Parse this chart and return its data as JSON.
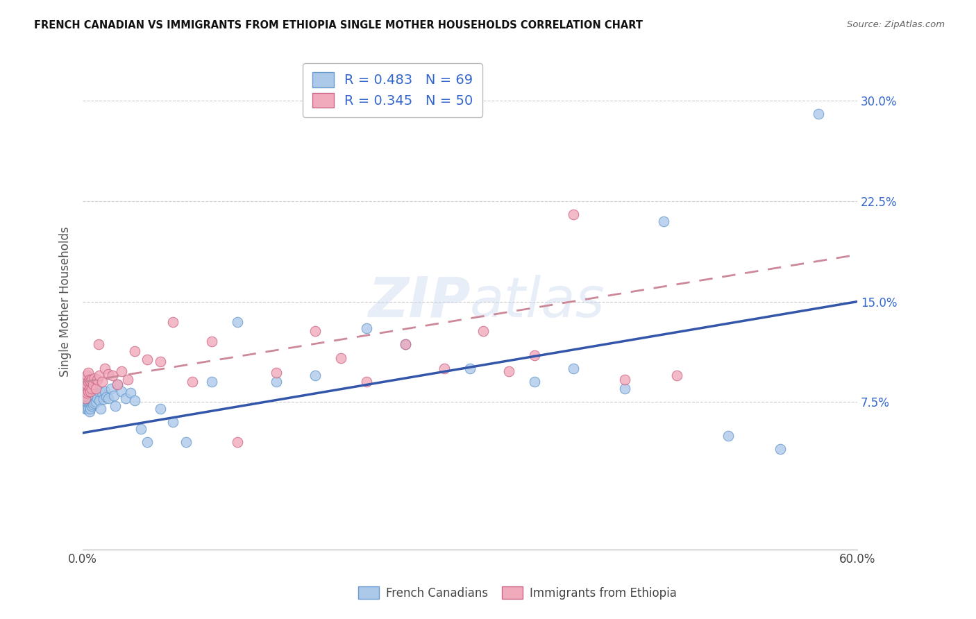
{
  "title": "FRENCH CANADIAN VS IMMIGRANTS FROM ETHIOPIA SINGLE MOTHER HOUSEHOLDS CORRELATION CHART",
  "source": "Source: ZipAtlas.com",
  "ylabel": "Single Mother Households",
  "xlim": [
    0.0,
    0.6
  ],
  "ylim": [
    -0.035,
    0.335
  ],
  "ytick_values": [
    0.075,
    0.15,
    0.225,
    0.3
  ],
  "ytick_labels": [
    "7.5%",
    "15.0%",
    "22.5%",
    "30.0%"
  ],
  "legend_fc_r": "0.483",
  "legend_fc_n": "69",
  "legend_eth_r": "0.345",
  "legend_eth_n": "50",
  "fc_color": "#adc9ea",
  "fc_edge": "#6699cc",
  "eth_color": "#f0aabb",
  "eth_edge": "#cc6688",
  "line_fc_color": "#3355aa",
  "line_eth_color": "#cc4466",
  "line_eth_dash_color": "#cc8899",
  "watermark_color": "#ccdaee",
  "fc_x": [
    0.001,
    0.001,
    0.001,
    0.001,
    0.002,
    0.002,
    0.002,
    0.002,
    0.002,
    0.003,
    0.003,
    0.003,
    0.003,
    0.004,
    0.004,
    0.004,
    0.004,
    0.005,
    0.005,
    0.005,
    0.005,
    0.006,
    0.006,
    0.006,
    0.007,
    0.007,
    0.007,
    0.008,
    0.008,
    0.009,
    0.009,
    0.01,
    0.01,
    0.011,
    0.012,
    0.013,
    0.014,
    0.015,
    0.016,
    0.017,
    0.018,
    0.02,
    0.022,
    0.024,
    0.025,
    0.027,
    0.03,
    0.033,
    0.037,
    0.04,
    0.045,
    0.05,
    0.06,
    0.07,
    0.08,
    0.1,
    0.12,
    0.15,
    0.18,
    0.22,
    0.25,
    0.3,
    0.35,
    0.38,
    0.42,
    0.45,
    0.5,
    0.54,
    0.57
  ],
  "fc_y": [
    0.075,
    0.08,
    0.085,
    0.09,
    0.07,
    0.075,
    0.08,
    0.085,
    0.09,
    0.07,
    0.075,
    0.08,
    0.085,
    0.07,
    0.075,
    0.082,
    0.088,
    0.068,
    0.075,
    0.08,
    0.086,
    0.07,
    0.076,
    0.082,
    0.072,
    0.078,
    0.083,
    0.073,
    0.079,
    0.074,
    0.08,
    0.075,
    0.082,
    0.078,
    0.083,
    0.076,
    0.07,
    0.082,
    0.077,
    0.083,
    0.079,
    0.078,
    0.085,
    0.08,
    0.072,
    0.088,
    0.083,
    0.078,
    0.082,
    0.076,
    0.055,
    0.045,
    0.07,
    0.06,
    0.045,
    0.09,
    0.135,
    0.09,
    0.095,
    0.13,
    0.118,
    0.1,
    0.09,
    0.1,
    0.085,
    0.21,
    0.05,
    0.04,
    0.29
  ],
  "eth_x": [
    0.001,
    0.001,
    0.001,
    0.002,
    0.002,
    0.002,
    0.003,
    0.003,
    0.003,
    0.004,
    0.004,
    0.004,
    0.005,
    0.005,
    0.006,
    0.006,
    0.007,
    0.007,
    0.008,
    0.009,
    0.01,
    0.011,
    0.012,
    0.013,
    0.015,
    0.017,
    0.02,
    0.023,
    0.027,
    0.03,
    0.035,
    0.04,
    0.05,
    0.06,
    0.07,
    0.085,
    0.1,
    0.12,
    0.15,
    0.18,
    0.2,
    0.22,
    0.25,
    0.28,
    0.31,
    0.33,
    0.35,
    0.38,
    0.42,
    0.46
  ],
  "eth_y": [
    0.08,
    0.086,
    0.092,
    0.078,
    0.085,
    0.092,
    0.082,
    0.088,
    0.095,
    0.083,
    0.09,
    0.097,
    0.085,
    0.092,
    0.083,
    0.09,
    0.085,
    0.092,
    0.088,
    0.093,
    0.085,
    0.092,
    0.118,
    0.095,
    0.09,
    0.1,
    0.096,
    0.095,
    0.088,
    0.098,
    0.092,
    0.113,
    0.107,
    0.105,
    0.135,
    0.09,
    0.12,
    0.045,
    0.097,
    0.128,
    0.108,
    0.09,
    0.118,
    0.1,
    0.128,
    0.098,
    0.11,
    0.215,
    0.092,
    0.095
  ],
  "fc_line_x0": 0.0,
  "fc_line_y0": 0.052,
  "fc_line_x1": 0.6,
  "fc_line_y1": 0.15,
  "eth_line_x0": 0.0,
  "eth_line_y0": 0.09,
  "eth_line_x1": 0.6,
  "eth_line_y1": 0.185
}
